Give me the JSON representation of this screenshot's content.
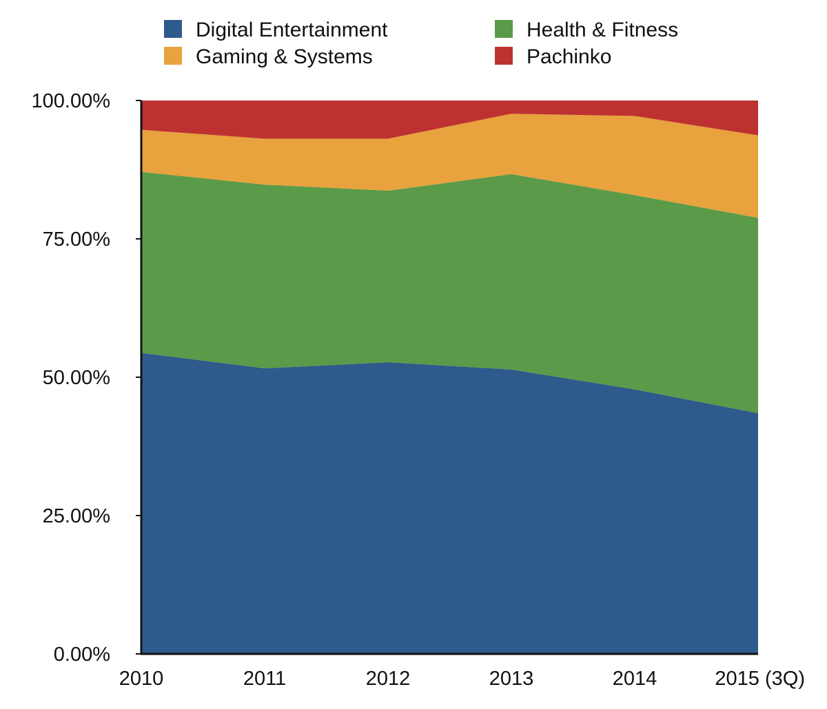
{
  "chart_data": {
    "type": "area",
    "stacked": true,
    "categories": [
      "2010",
      "2011",
      "2012",
      "2013",
      "2014",
      "2015 (3Q)"
    ],
    "ylim": [
      0,
      100
    ],
    "y_ticks": [
      0,
      25,
      50,
      75,
      100
    ],
    "y_tick_labels": [
      "0.00%",
      "25.00%",
      "50.00%",
      "75.00%",
      "100.00%"
    ],
    "legend_position": "top",
    "grid": false,
    "series": [
      {
        "name": "Digital Entertainment",
        "color": "#2e5a8c",
        "values": [
          54.4,
          51.6,
          52.7,
          51.4,
          47.8,
          43.5
        ]
      },
      {
        "name": "Health & Fitness",
        "color": "#5b9a48",
        "values": [
          32.7,
          33.2,
          31.0,
          35.3,
          35.1,
          35.3
        ]
      },
      {
        "name": "Gaming & Systems",
        "color": "#e8a23e",
        "values": [
          7.6,
          8.3,
          9.4,
          10.9,
          14.3,
          14.9
        ]
      },
      {
        "name": "Pachinko",
        "color": "#bd3230",
        "values": [
          5.3,
          6.9,
          6.9,
          2.4,
          2.8,
          6.3
        ]
      }
    ]
  }
}
